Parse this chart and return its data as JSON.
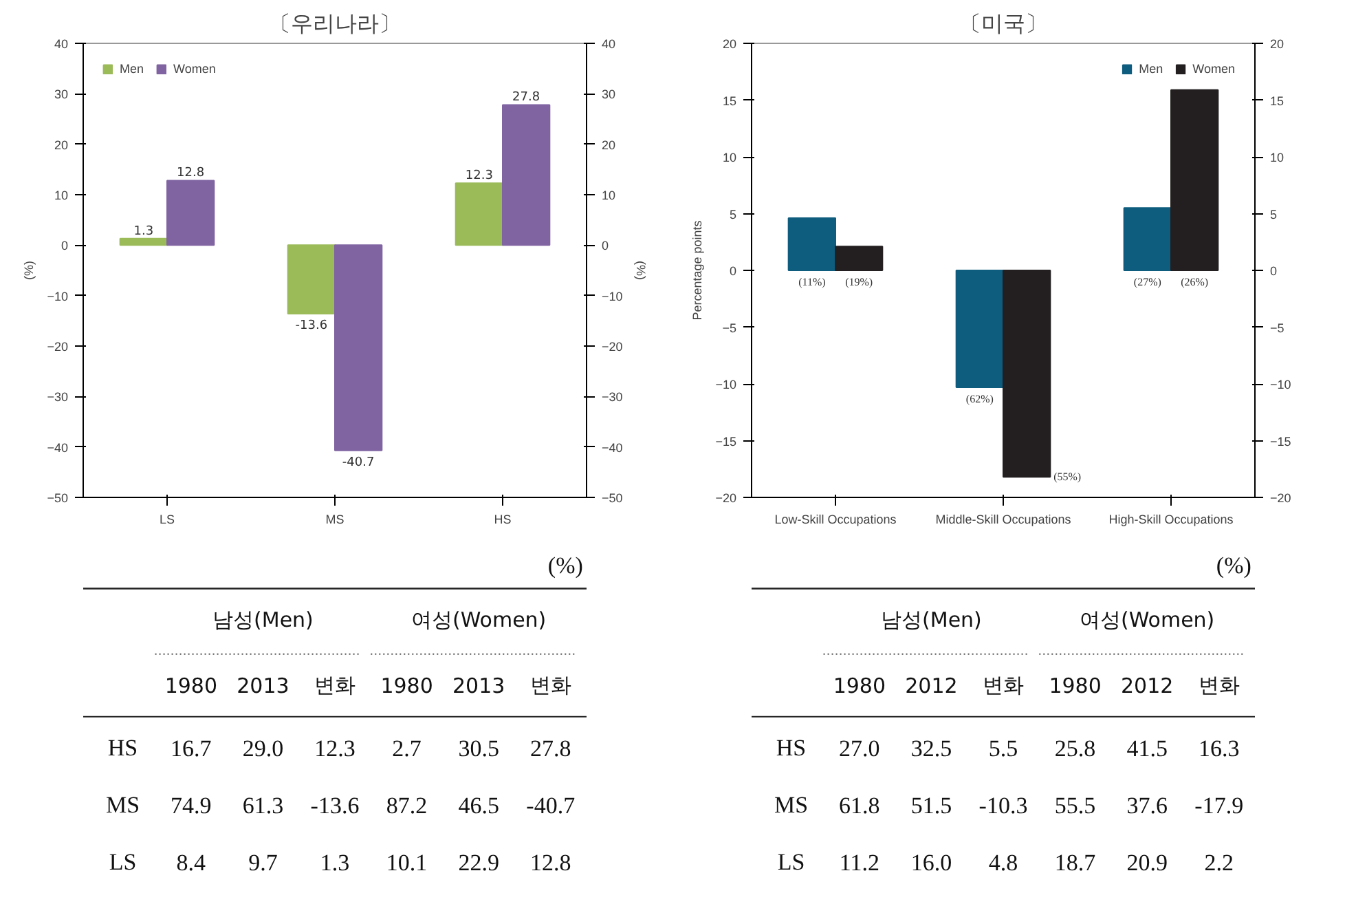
{
  "chart_data": [
    {
      "type": "bar",
      "title": "〔우리나라〕",
      "categories": [
        "LS",
        "MS",
        "HS"
      ],
      "ylabel": "(%)",
      "y2label": "(%)",
      "ylim": [
        -50,
        40
      ],
      "yticks": [
        -50,
        -40,
        -30,
        -20,
        -10,
        0,
        10,
        20,
        30,
        40
      ],
      "y2lim": [
        -50,
        40
      ],
      "y2ticks": [
        -50,
        -40,
        -30,
        -20,
        -10,
        0,
        10,
        20,
        30,
        40
      ],
      "legend": "top left",
      "grid": false,
      "data_labels": true,
      "series": [
        {
          "name": "Men",
          "color": "#9bbb59",
          "values": [
            1.3,
            -13.6,
            12.3
          ]
        },
        {
          "name": "Women",
          "color": "#8064a2",
          "values": [
            12.8,
            -40.7,
            27.8
          ]
        }
      ]
    },
    {
      "type": "bar",
      "title": "〔미국〕",
      "categories": [
        "Low-Skill Occupations",
        "Middle-Skill Occupations",
        "High-Skill Occupations"
      ],
      "ylabel": "Percentage points",
      "ylim": [
        -20,
        20
      ],
      "yticks": [
        -20,
        -15,
        -10,
        -5,
        0,
        5,
        10,
        15,
        20
      ],
      "y2lim": [
        -20,
        20
      ],
      "y2ticks": [
        -20,
        -15,
        -10,
        -5,
        0,
        5,
        10,
        15,
        20
      ],
      "legend": "top right",
      "grid": false,
      "series": [
        {
          "name": "Men",
          "color": "#0e5c7e",
          "values": [
            4.6,
            -10.3,
            5.5
          ]
        },
        {
          "name": "Women",
          "color": "#231f20",
          "values": [
            2.1,
            -18.2,
            15.9
          ]
        }
      ],
      "annotations": [
        "(11%)",
        "(19%)",
        "(62%)",
        "(55%)",
        "(27%)",
        "(26%)"
      ]
    },
    {
      "type": "heatmap",
      "categories": [
        "1980",
        "2013",
        "변화",
        "1980",
        "2013",
        "변화"
      ],
      "y_categories": [
        "HS",
        "MS",
        "LS"
      ],
      "cells": [
        [
          16.7,
          29.0,
          12.3,
          2.7,
          30.5,
          27.8
        ],
        [
          74.9,
          61.3,
          -13.6,
          87.2,
          46.5,
          -40.7
        ],
        [
          8.4,
          9.7,
          1.3,
          10.1,
          22.9,
          12.8
        ]
      ],
      "cell_labels": [
        [
          "16.7",
          "29.0",
          "12.3",
          "2.7",
          "30.5",
          "27.8"
        ],
        [
          "74.9",
          "61.3",
          "-13.6",
          "87.2",
          "46.5",
          "-40.7"
        ],
        [
          "8.4",
          "9.7",
          "1.3",
          "10.1",
          "22.9",
          "12.8"
        ]
      ],
      "data_labels": true,
      "annotations": [
        "(%)",
        "남성(Men)",
        "여성(Women)"
      ]
    },
    {
      "type": "heatmap",
      "categories": [
        "1980",
        "2012",
        "변화",
        "1980",
        "2012",
        "변화"
      ],
      "y_categories": [
        "HS",
        "MS",
        "LS"
      ],
      "cells": [
        [
          27.0,
          32.5,
          5.5,
          25.8,
          41.5,
          16.3
        ],
        [
          61.8,
          51.5,
          -10.3,
          55.5,
          37.6,
          -17.9
        ],
        [
          11.2,
          16.0,
          4.8,
          18.7,
          20.9,
          2.2
        ]
      ],
      "cell_labels": [
        [
          "27.0",
          "32.5",
          "5.5",
          "25.8",
          "41.5",
          "16.3"
        ],
        [
          "61.8",
          "51.5",
          "-10.3",
          "55.5",
          "37.6",
          "-17.9"
        ],
        [
          "11.2",
          "16.0",
          "4.8",
          "18.7",
          "20.9",
          "2.2"
        ]
      ],
      "data_labels": true,
      "annotations": [
        "(%)",
        "남성(Men)",
        "여성(Women)"
      ]
    }
  ]
}
